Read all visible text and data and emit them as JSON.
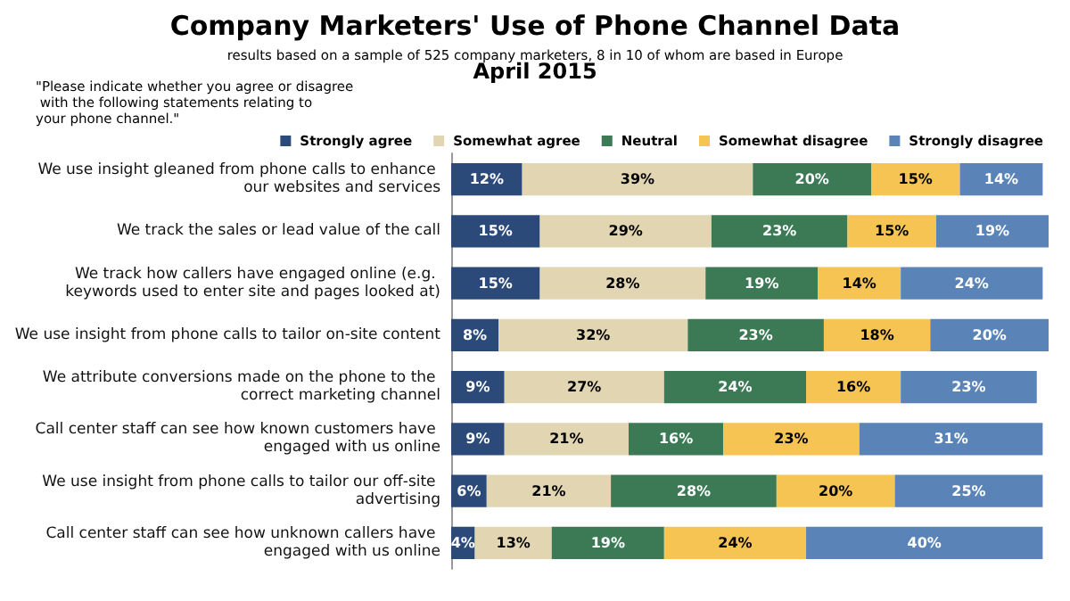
{
  "chart_data": {
    "type": "bar",
    "orientation": "horizontal",
    "stacked": true,
    "title": "Company Marketers' Use of Phone Channel Data",
    "subtitle": "results based on a sample of 525 company marketers, 8 in 10 of whom are based in Europe",
    "annotations": [
      "April 2015",
      "\"Please indicate whether you agree or disagree with the following statements relating to your phone channel.\""
    ],
    "categories": [
      "We use insight gleaned from phone calls to enhance our websites and services",
      "We track the sales or lead value of the call",
      "We track how callers have engaged online (e.g. keywords used to enter site and pages looked at)",
      "We use insight from phone calls to tailor on-site content",
      "We attribute conversions made on the phone to the correct marketing channel",
      "Call center staff can see how known customers have engaged with us online",
      "We use insight from phone calls to tailor our off-site advertising",
      "Call center staff can see how unknown callers have engaged with us online"
    ],
    "series": [
      {
        "name": "Strongly agree",
        "color": "#2b4a7a",
        "values": [
          12,
          15,
          15,
          8,
          9,
          9,
          6,
          4
        ],
        "value_labels": [
          "12%",
          "15%",
          "15%",
          "8%",
          "9%",
          "9%",
          "6%",
          "4%"
        ]
      },
      {
        "name": "Somewhat agree",
        "color": "#e2d5b1",
        "values": [
          39,
          29,
          28,
          32,
          27,
          21,
          21,
          13
        ],
        "value_labels": [
          "39%",
          "29%",
          "28%",
          "32%",
          "27%",
          "21%",
          "21%",
          "13%"
        ]
      },
      {
        "name": "Neutral",
        "color": "#3b7a55",
        "values": [
          20,
          23,
          19,
          23,
          24,
          16,
          28,
          19
        ],
        "value_labels": [
          "20%",
          "23%",
          "19%",
          "23%",
          "24%",
          "16%",
          "28%",
          "19%"
        ]
      },
      {
        "name": "Somewhat disagree",
        "color": "#f6c452",
        "values": [
          15,
          15,
          14,
          18,
          16,
          23,
          20,
          24
        ],
        "value_labels": [
          "15%",
          "15%",
          "14%",
          "18%",
          "16%",
          "23%",
          "20%",
          "24%"
        ]
      },
      {
        "name": "Strongly disagree",
        "color": "#5a84b8",
        "values": [
          14,
          19,
          24,
          20,
          23,
          31,
          25,
          40
        ],
        "value_labels": [
          "14%",
          "19%",
          "24%",
          "20%",
          "23%",
          "31%",
          "25%",
          "40%"
        ]
      }
    ],
    "legend": "top"
  }
}
